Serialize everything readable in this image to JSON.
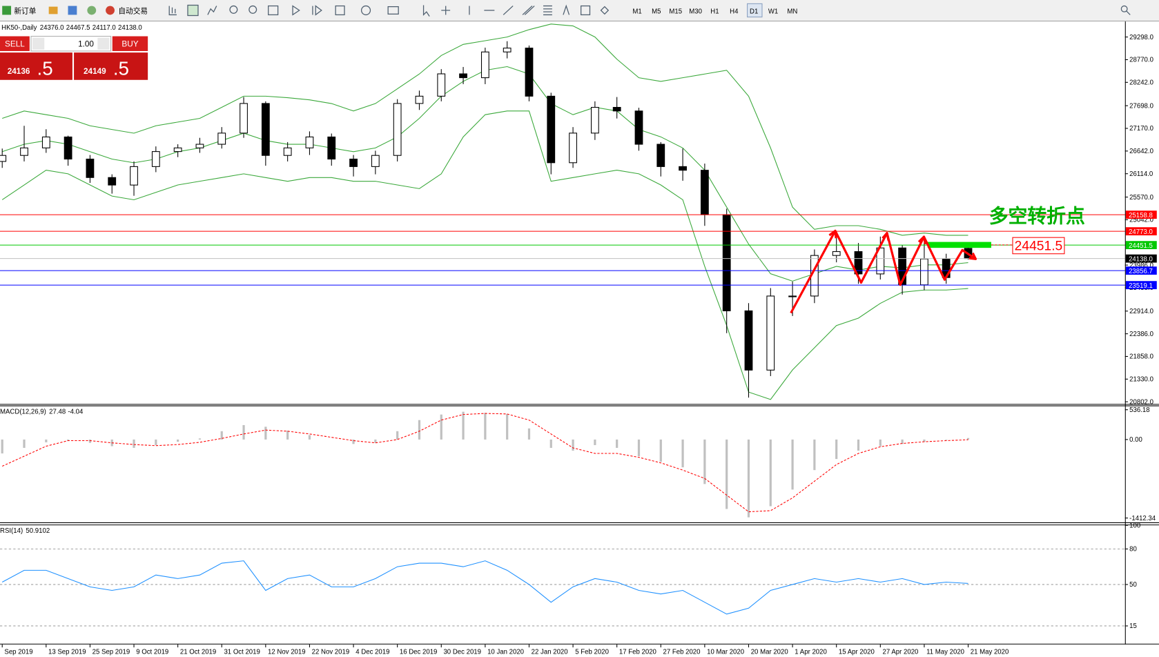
{
  "toolbar": {
    "new_order": "新订单",
    "auto_trading": "自动交易",
    "timeframes": [
      "M1",
      "M5",
      "M15",
      "M30",
      "H1",
      "H4",
      "D1",
      "W1",
      "MN"
    ],
    "active_timeframe": 6
  },
  "trade_panel": {
    "sell": "SELL",
    "buy": "BUY",
    "volume": "1.00",
    "sell_price": "24136",
    "sell_price_frac": ".5",
    "buy_price": "24149",
    "buy_price_frac": ".5"
  },
  "chart_data": [
    {
      "type": "candlestick",
      "title": "HK50-,Daily",
      "header_values": [
        "24376.0",
        "24467.5",
        "24117.0",
        "24138.0"
      ],
      "categories": [
        "Sep 2019",
        null,
        "13 Sep 2019",
        null,
        "25 Sep 2019",
        null,
        "9 Oct 2019",
        null,
        "21 Oct 2019",
        null,
        "31 Oct 2019",
        null,
        "12 Nov 2019",
        null,
        "22 Nov 2019",
        null,
        "4 Dec 2019",
        null,
        "16 Dec 2019",
        null,
        "30 Dec 2019",
        null,
        "10 Jan 2020",
        null,
        "22 Jan 2020",
        null,
        "5 Feb 2020",
        null,
        "17 Feb 2020",
        null,
        "27 Feb 2020",
        null,
        "10 Mar 2020",
        null,
        "20 Mar 2020",
        null,
        "1 Apr 2020",
        null,
        "15 Apr 2020",
        null,
        "27 Apr 2020",
        null,
        "11 May 2020",
        null,
        "21 May 2020"
      ],
      "open": [
        26400,
        26540,
        26715,
        26970,
        26455,
        26025,
        25850,
        26280,
        26630,
        26715,
        26800,
        27060,
        27750,
        26540,
        26715,
        26970,
        26455,
        26280,
        26540,
        27750,
        27920,
        28440,
        28350,
        28950,
        29040,
        27920,
        26370,
        27060,
        27660,
        27575,
        26800,
        26280,
        26195,
        25160,
        22920,
        21540,
        23265,
        23265,
        24210,
        24300,
        23780,
        24385,
        23525,
        24130,
        24376
      ],
      "high": [
        26700,
        27230,
        27150,
        27000,
        26550,
        26100,
        26400,
        26750,
        26800,
        26950,
        27200,
        27900,
        27800,
        26850,
        27100,
        27050,
        26550,
        26650,
        27850,
        28050,
        28550,
        28600,
        29050,
        29200,
        29100,
        28000,
        27200,
        27800,
        27900,
        27650,
        26850,
        26700,
        26350,
        25300,
        23100,
        23450,
        23600,
        24350,
        24750,
        24500,
        24650,
        24450,
        24600,
        24250,
        24467.5
      ],
      "low": [
        26250,
        26400,
        26600,
        26300,
        25900,
        25650,
        25600,
        26150,
        26500,
        26600,
        26700,
        26950,
        26300,
        26400,
        26550,
        26300,
        26050,
        26100,
        26400,
        27600,
        27800,
        28200,
        28200,
        28800,
        27800,
        26100,
        26250,
        26900,
        27400,
        26650,
        26050,
        25950,
        24900,
        22400,
        20900,
        21400,
        22800,
        23100,
        24050,
        23550,
        23650,
        23300,
        23400,
        23550,
        24117
      ],
      "close": [
        26540,
        26715,
        26970,
        26455,
        26025,
        25850,
        26280,
        26630,
        26715,
        26800,
        27060,
        27750,
        26540,
        26715,
        26970,
        26455,
        26280,
        26540,
        27750,
        27920,
        28440,
        28350,
        28950,
        29040,
        27920,
        26370,
        27060,
        27660,
        27575,
        26800,
        26280,
        26195,
        25160,
        22920,
        21540,
        23265,
        23265,
        24210,
        24300,
        23780,
        24385,
        23525,
        24130,
        23695,
        24138
      ],
      "up_color": "#ffffff",
      "down_color": "#000000",
      "bands": {
        "color": "#3aa83a",
        "upper": [
          27403,
          27575,
          27489,
          27403,
          27230,
          27144,
          27058,
          27230,
          27317,
          27403,
          27661,
          27920,
          27920,
          27885,
          27834,
          27748,
          27575,
          27748,
          28092,
          28436,
          28867,
          29126,
          29212,
          29298,
          29470,
          29600,
          29556,
          29298,
          28781,
          28350,
          28264,
          28350,
          28436,
          28523,
          27920,
          26714,
          25335,
          24818,
          24904,
          24904,
          24818,
          24680,
          24732,
          24680,
          24680
        ],
        "middle": [
          26627,
          26800,
          26886,
          26800,
          26627,
          26455,
          26369,
          26455,
          26627,
          26714,
          26886,
          27058,
          26886,
          26800,
          26800,
          26714,
          26627,
          26714,
          26972,
          27403,
          27920,
          28264,
          28523,
          28609,
          28436,
          27748,
          27489,
          27661,
          27575,
          27144,
          26972,
          26714,
          26197,
          25335,
          24474,
          23784,
          23612,
          23784,
          23956,
          23870,
          23956,
          23922,
          23991,
          23991,
          24043
        ],
        "lower": [
          25507,
          25852,
          26197,
          26111,
          25852,
          25593,
          25507,
          25680,
          25852,
          25938,
          26024,
          26111,
          26024,
          25938,
          26024,
          26024,
          25938,
          25938,
          25852,
          25766,
          26111,
          26972,
          27489,
          27575,
          27575,
          25938,
          26024,
          26111,
          26197,
          26111,
          25852,
          25507,
          23956,
          22578,
          21028,
          20855,
          21544,
          22061,
          22578,
          22750,
          23095,
          23354,
          23405,
          23405,
          23440
        ]
      },
      "ylim": [
        20751,
        29643
      ],
      "yticks": [
        {
          "value": 29298,
          "label": "29298.0"
        },
        {
          "value": 28770,
          "label": "28770.0"
        },
        {
          "value": 28242,
          "label": "28242.0"
        },
        {
          "value": 27698,
          "label": "27698.0"
        },
        {
          "value": 27170,
          "label": "27170.0"
        },
        {
          "value": 26642,
          "label": "26642.0"
        },
        {
          "value": 26114,
          "label": "26114.0"
        },
        {
          "value": 25570,
          "label": "25570.0"
        },
        {
          "value": 25042,
          "label": "25042.0"
        },
        {
          "value": 23986,
          "label": "23986.0"
        },
        {
          "value": 23458,
          "label": "23458.0"
        },
        {
          "value": 22914,
          "label": "22914.0"
        },
        {
          "value": 22386,
          "label": "22386.0"
        },
        {
          "value": 21858,
          "label": "21858.0"
        },
        {
          "value": 21330,
          "label": "21330.0"
        },
        {
          "value": 20802,
          "label": "20802.0"
        }
      ],
      "levels": [
        {
          "value": 25158.8,
          "color": "#ff0000"
        },
        {
          "value": 24773,
          "label": "24773.0",
          "color": "#ff0000"
        },
        {
          "value": 24451.5,
          "color": "#00c800"
        },
        {
          "value": 24138,
          "label": "24138.0",
          "color": "#000000"
        },
        {
          "value": 23856.7,
          "color": "#0000ff"
        },
        {
          "value": 23519.1,
          "color": "#0000ff"
        }
      ],
      "annotation": "多空转折点"
    },
    {
      "type": "macd",
      "title": "MACD(12,26,9)",
      "histogram": [
        -250,
        -150,
        -50,
        -20,
        -60,
        -120,
        -150,
        -100,
        -40,
        20,
        150,
        260,
        230,
        160,
        80,
        0,
        -80,
        -60,
        150,
        350,
        450,
        500,
        480,
        460,
        200,
        -150,
        -200,
        -100,
        -150,
        -300,
        -400,
        -500,
        -800,
        -1250,
        -1400,
        -1200,
        -900,
        -550,
        -350,
        -200,
        -120,
        -80,
        -40,
        -10,
        27.48
      ],
      "signal": [
        -480,
        -300,
        -120,
        -20,
        -20,
        -60,
        -90,
        -110,
        -90,
        -50,
        20,
        100,
        170,
        150,
        100,
        40,
        -20,
        -60,
        0,
        150,
        350,
        450,
        470,
        460,
        350,
        100,
        -150,
        -250,
        -250,
        -320,
        -420,
        -550,
        -700,
        -1000,
        -1300,
        -1280,
        -1050,
        -750,
        -450,
        -250,
        -130,
        -70,
        -40,
        -20,
        -4.04
      ],
      "histogram_color": "#c0c0c0",
      "signal_color": "#ff0000",
      "ylim": [
        -1490,
        600
      ],
      "yticks": [
        {
          "value": 536.18,
          "label": "536.18"
        },
        {
          "value": 0,
          "label": "0.00"
        },
        {
          "value": -1412.34,
          "label": "-1412.34"
        }
      ]
    },
    {
      "type": "rsi",
      "title": "RSI(14)",
      "values": [
        52,
        62,
        62,
        55,
        48,
        45,
        48,
        58,
        55,
        58,
        68,
        70,
        45,
        55,
        58,
        48,
        48,
        55,
        65,
        68,
        68,
        65,
        70,
        62,
        50,
        35,
        48,
        55,
        52,
        45,
        42,
        45,
        35,
        25,
        30,
        45,
        50,
        55,
        52,
        55,
        52,
        55,
        50,
        52,
        50.9102
      ],
      "color": "#1e90ff",
      "ylim": [
        0,
        100
      ],
      "yticks": [
        100,
        80,
        50,
        15
      ]
    }
  ]
}
